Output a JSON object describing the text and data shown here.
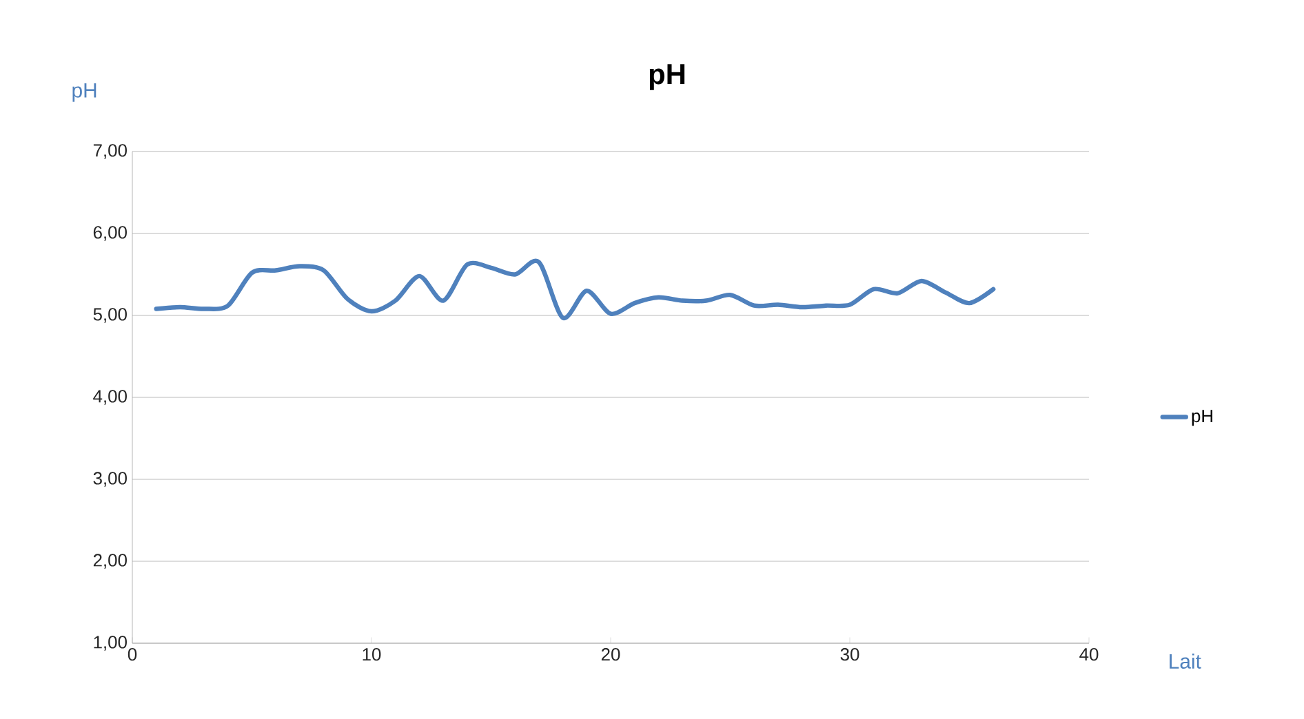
{
  "chart_data": {
    "type": "line",
    "title": "pH",
    "xlabel": "Lait",
    "ylabel": "pH",
    "x": [
      1,
      2,
      3,
      4,
      5,
      6,
      7,
      8,
      9,
      10,
      11,
      12,
      13,
      14,
      15,
      16,
      17,
      18,
      19,
      20,
      21,
      22,
      23,
      24,
      25,
      26,
      27,
      28,
      29,
      30,
      31,
      32,
      33,
      34,
      35,
      36
    ],
    "series": [
      {
        "name": "pH",
        "color": "#4f81bd",
        "values": [
          5.08,
          5.1,
          5.08,
          5.12,
          5.52,
          5.55,
          5.6,
          5.55,
          5.2,
          5.05,
          5.18,
          5.48,
          5.18,
          5.62,
          5.58,
          5.5,
          5.65,
          4.97,
          5.3,
          5.02,
          5.15,
          5.22,
          5.18,
          5.18,
          5.25,
          5.12,
          5.13,
          5.1,
          5.12,
          5.13,
          5.32,
          5.27,
          5.42,
          5.28,
          5.15,
          5.32
        ]
      }
    ],
    "xlim": [
      0,
      40
    ],
    "xticks": [
      0,
      10,
      20,
      30,
      40
    ],
    "ylim": [
      1,
      7
    ],
    "yticks": [
      {
        "value": 1,
        "label": "1,00"
      },
      {
        "value": 2,
        "label": "2,00"
      },
      {
        "value": 3,
        "label": "3,00"
      },
      {
        "value": 4,
        "label": "4,00"
      },
      {
        "value": 5,
        "label": "5,00"
      },
      {
        "value": 6,
        "label": "6,00"
      },
      {
        "value": 7,
        "label": "7,00"
      }
    ],
    "grid": "y",
    "legend": "right",
    "marker": "none",
    "line_style": "solid"
  }
}
